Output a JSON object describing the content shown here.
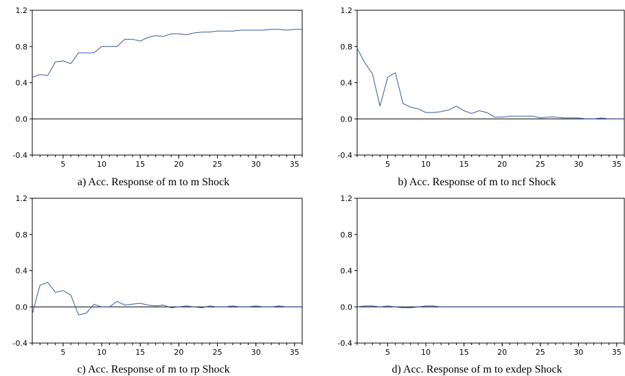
{
  "chart_data": [
    {
      "type": "line",
      "caption": "a) Acc. Response of m to m Shock",
      "ylim": [
        -0.4,
        1.2
      ],
      "yticks": [
        "-0.4",
        "0.0",
        "0.4",
        "0.8",
        "1.2"
      ],
      "xlim": [
        1,
        36
      ],
      "xticks": [
        "5",
        "10",
        "15",
        "20",
        "25",
        "30",
        "35"
      ],
      "grid": false,
      "series_color": "#3355aa",
      "x": [
        1,
        2,
        3,
        4,
        5,
        6,
        7,
        8,
        9,
        10,
        11,
        12,
        13,
        14,
        15,
        16,
        17,
        18,
        19,
        20,
        21,
        22,
        23,
        24,
        25,
        26,
        27,
        28,
        29,
        30,
        31,
        32,
        33,
        34,
        35,
        36
      ],
      "values": [
        0.46,
        0.49,
        0.48,
        0.63,
        0.64,
        0.61,
        0.73,
        0.73,
        0.73,
        0.8,
        0.8,
        0.8,
        0.88,
        0.88,
        0.86,
        0.9,
        0.92,
        0.91,
        0.94,
        0.94,
        0.93,
        0.95,
        0.96,
        0.96,
        0.97,
        0.97,
        0.97,
        0.98,
        0.98,
        0.98,
        0.98,
        0.99,
        0.99,
        0.98,
        0.99,
        0.99
      ]
    },
    {
      "type": "line",
      "caption": "b) Acc. Response of m to ncf Shock",
      "ylim": [
        -0.4,
        1.2
      ],
      "yticks": [
        "-0.4",
        "0.0",
        "0.4",
        "0.8",
        "1.2"
      ],
      "xlim": [
        1,
        36
      ],
      "xticks": [
        "5",
        "10",
        "15",
        "20",
        "25",
        "30",
        "35"
      ],
      "grid": false,
      "series_color": "#3355aa",
      "x": [
        1,
        2,
        3,
        4,
        5,
        6,
        7,
        8,
        9,
        10,
        11,
        12,
        13,
        14,
        15,
        16,
        17,
        18,
        19,
        20,
        21,
        22,
        23,
        24,
        25,
        26,
        27,
        28,
        29,
        30,
        31,
        32,
        33,
        34,
        35,
        36
      ],
      "values": [
        0.78,
        0.62,
        0.5,
        0.14,
        0.46,
        0.51,
        0.17,
        0.13,
        0.11,
        0.07,
        0.07,
        0.08,
        0.1,
        0.14,
        0.09,
        0.06,
        0.09,
        0.07,
        0.02,
        0.02,
        0.03,
        0.03,
        0.03,
        0.03,
        0.01,
        0.02,
        0.02,
        0.01,
        0.01,
        0.01,
        0.0,
        0.0,
        0.01,
        0.0,
        0.0,
        0.0
      ]
    },
    {
      "type": "line",
      "caption": "c) Acc. Response of m to rp Shock",
      "ylim": [
        -0.4,
        1.2
      ],
      "yticks": [
        "-0.4",
        "0.0",
        "0.4",
        "0.8",
        "1.2"
      ],
      "xlim": [
        1,
        36
      ],
      "xticks": [
        "5",
        "10",
        "15",
        "20",
        "25",
        "30",
        "35"
      ],
      "grid": false,
      "series_color": "#3355aa",
      "x": [
        1,
        2,
        3,
        4,
        5,
        6,
        7,
        8,
        9,
        10,
        11,
        12,
        13,
        14,
        15,
        16,
        17,
        18,
        19,
        20,
        21,
        22,
        23,
        24,
        25,
        26,
        27,
        28,
        29,
        30,
        31,
        32,
        33,
        34,
        35,
        36
      ],
      "values": [
        -0.08,
        0.24,
        0.27,
        0.16,
        0.18,
        0.13,
        -0.09,
        -0.07,
        0.03,
        0.0,
        0.0,
        0.06,
        0.02,
        0.03,
        0.04,
        0.02,
        0.01,
        0.02,
        -0.01,
        0.0,
        0.01,
        0.0,
        -0.01,
        0.01,
        0.0,
        0.0,
        0.01,
        0.0,
        0.0,
        0.01,
        0.0,
        0.0,
        0.01,
        0.0,
        0.0,
        0.0
      ]
    },
    {
      "type": "line",
      "caption": "d) Acc. Response of m to exdep Shock",
      "ylim": [
        -0.4,
        1.2
      ],
      "yticks": [
        "-0.4",
        "0.0",
        "0.4",
        "0.8",
        "1.2"
      ],
      "xlim": [
        1,
        36
      ],
      "xticks": [
        "5",
        "10",
        "15",
        "20",
        "25",
        "30",
        "35"
      ],
      "grid": false,
      "series_color": "#3355aa",
      "x": [
        1,
        2,
        3,
        4,
        5,
        6,
        7,
        8,
        9,
        10,
        11,
        12,
        13,
        14,
        15,
        16,
        17,
        18,
        19,
        20,
        21,
        22,
        23,
        24,
        25,
        26,
        27,
        28,
        29,
        30,
        31,
        32,
        33,
        34,
        35,
        36
      ],
      "values": [
        0.0,
        0.01,
        0.01,
        0.0,
        0.01,
        0.0,
        -0.01,
        -0.01,
        0.0,
        0.01,
        0.01,
        0.0,
        0.0,
        0.0,
        0.0,
        0.0,
        0.0,
        0.0,
        0.0,
        0.0,
        0.0,
        0.0,
        0.0,
        0.0,
        0.0,
        0.0,
        0.0,
        0.0,
        0.0,
        0.0,
        0.0,
        0.0,
        0.0,
        0.0,
        0.0,
        0.0
      ]
    }
  ]
}
